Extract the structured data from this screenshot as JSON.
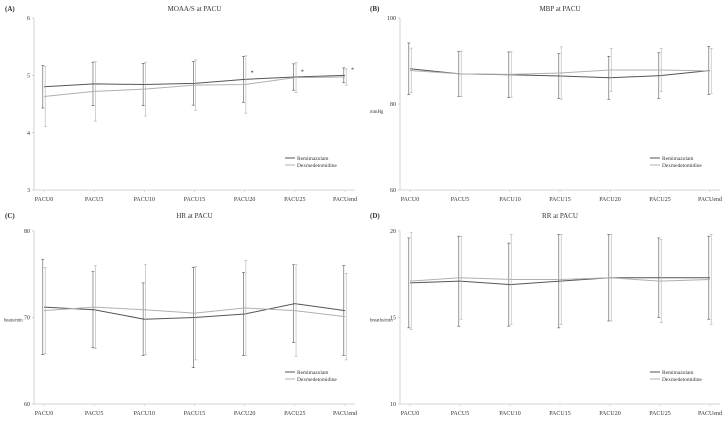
{
  "colors": {
    "series_dark": "#555555",
    "series_light": "#b0b0b0",
    "axis": "#c8c8c8",
    "text": "#333333"
  },
  "chart_data": [
    {
      "panel": "(A)",
      "type": "line",
      "title": "MOAA/S at PACU",
      "ylabel": "",
      "ylim": [
        3,
        6
      ],
      "yticks": [
        3,
        4,
        5,
        6
      ],
      "categories": [
        "PACU0",
        "PACU5",
        "PACU10",
        "PACU15",
        "PACU20",
        "PACU25",
        "PACUend"
      ],
      "grid": false,
      "legend": "lower-right",
      "series": [
        {
          "name": "Remimazolam",
          "color": "#555555",
          "values": [
            4.8,
            4.85,
            4.84,
            4.86,
            4.93,
            4.97,
            5.0
          ],
          "sd": [
            0.37,
            0.38,
            0.37,
            0.38,
            0.4,
            0.23,
            0.13
          ]
        },
        {
          "name": "Dexmedetomidine",
          "color": "#b0b0b0",
          "values": [
            4.63,
            4.72,
            4.76,
            4.83,
            4.84,
            4.96,
            4.97
          ],
          "sd": [
            0.52,
            0.52,
            0.47,
            0.44,
            0.5,
            0.26,
            0.14
          ]
        }
      ],
      "annotations": [
        {
          "text": "*",
          "x": "PACU20",
          "y": 5.05
        },
        {
          "text": "*",
          "x": "PACU25",
          "y": 5.07
        },
        {
          "text": "*",
          "x": "PACUend",
          "y": 5.1
        }
      ]
    },
    {
      "panel": "(B)",
      "type": "line",
      "title": "MBP at PACU",
      "ylabel": "mmHg",
      "ylim": [
        60,
        100
      ],
      "yticks": [
        60,
        80,
        100
      ],
      "categories": [
        "PACU0",
        "PACU5",
        "PACU10",
        "PACU15",
        "PACU20",
        "PACU25",
        "PACUend"
      ],
      "grid": false,
      "legend": "lower-right",
      "series": [
        {
          "name": "Remimazolam",
          "color": "#555555",
          "values": [
            88.2,
            87.0,
            86.8,
            86.5,
            86.1,
            86.6,
            87.8
          ],
          "sd": [
            6.0,
            5.2,
            5.3,
            5.2,
            5.0,
            5.3,
            5.6
          ]
        },
        {
          "name": "Dexmedetomidine",
          "color": "#b0b0b0",
          "values": [
            87.8,
            87.0,
            86.9,
            87.2,
            87.9,
            87.9,
            87.7
          ],
          "sd": [
            5.2,
            5.3,
            5.3,
            6.1,
            5.0,
            5.0,
            5.2
          ]
        }
      ],
      "annotations": []
    },
    {
      "panel": "(C)",
      "type": "line",
      "title": "HR at PACU",
      "ylabel": "beats/min",
      "ylim": [
        60,
        80
      ],
      "yticks": [
        60,
        70,
        80
      ],
      "categories": [
        "PACU0",
        "PACU5",
        "PACU10",
        "PACU15",
        "PACU20",
        "PACU25",
        "PACUend"
      ],
      "grid": false,
      "legend": "lower-right",
      "series": [
        {
          "name": "Remimazolam",
          "color": "#555555",
          "values": [
            71.2,
            70.9,
            69.8,
            70.0,
            70.4,
            71.6,
            70.8
          ],
          "sd": [
            5.5,
            4.4,
            4.2,
            5.8,
            4.8,
            4.5,
            5.2
          ]
        },
        {
          "name": "Dexmedetomidine",
          "color": "#b0b0b0",
          "values": [
            70.8,
            71.2,
            70.9,
            70.5,
            71.1,
            70.8,
            70.1
          ],
          "sd": [
            5.0,
            4.8,
            5.2,
            5.4,
            5.5,
            5.3,
            5.0
          ]
        }
      ],
      "annotations": []
    },
    {
      "panel": "(D)",
      "type": "line",
      "title": "RR at PACU",
      "ylabel": "breaths/min",
      "ylim": [
        10,
        20
      ],
      "yticks": [
        10,
        15,
        20
      ],
      "categories": [
        "PACU0",
        "PACU5",
        "PACU10",
        "PACU15",
        "PACU20",
        "PACU25",
        "PACUend"
      ],
      "grid": false,
      "legend": "lower-right",
      "series": [
        {
          "name": "Remimazolam",
          "color": "#555555",
          "values": [
            17.0,
            17.1,
            16.9,
            17.1,
            17.3,
            17.3,
            17.3
          ],
          "sd": [
            2.6,
            2.6,
            2.4,
            2.7,
            2.5,
            2.3,
            2.4
          ]
        },
        {
          "name": "Dexmedetomidine",
          "color": "#b0b0b0",
          "values": [
            17.1,
            17.3,
            17.2,
            17.2,
            17.3,
            17.1,
            17.2
          ],
          "sd": [
            2.8,
            2.4,
            2.6,
            2.6,
            2.5,
            2.4,
            2.6
          ]
        }
      ],
      "annotations": []
    }
  ]
}
